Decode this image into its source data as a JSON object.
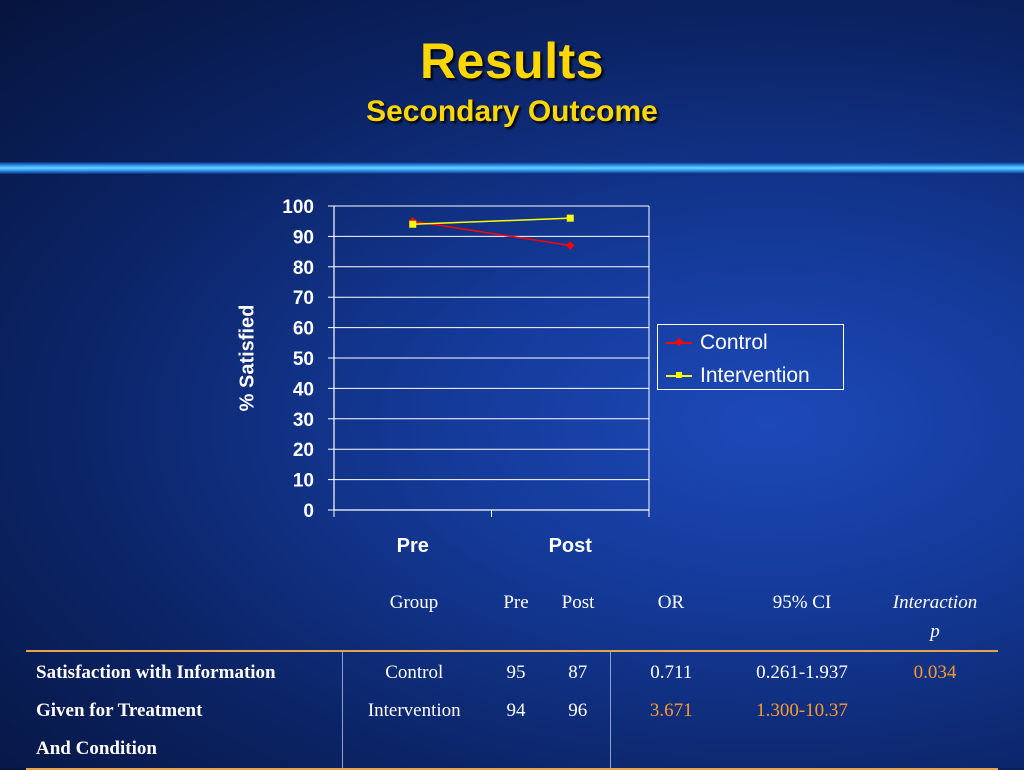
{
  "title": "Results",
  "subtitle": "Secondary Outcome",
  "chart_data": {
    "type": "line",
    "categories": [
      "Pre",
      "Post"
    ],
    "series": [
      {
        "name": "Control",
        "values": [
          95,
          87
        ],
        "color": "#ff0000",
        "marker": "diamond"
      },
      {
        "name": "Intervention",
        "values": [
          94,
          96
        ],
        "color": "#ffff00",
        "marker": "square"
      }
    ],
    "ylabel": "% Satisfied",
    "xlabel": "",
    "ylim": [
      0,
      100
    ],
    "yticks": [
      0,
      10,
      20,
      30,
      40,
      50,
      60,
      70,
      80,
      90,
      100
    ],
    "grid": true,
    "legend": "right"
  },
  "table": {
    "headers": {
      "group": "Group",
      "pre": "Pre",
      "post": "Post",
      "or": "OR",
      "ci": "95% CI",
      "p_line1": "Interaction",
      "p_line2": "p"
    },
    "measure_lines": [
      "Satisfaction with Information",
      "Given for Treatment",
      "And Condition"
    ],
    "rows": [
      {
        "group": "Control",
        "pre": "95",
        "post": "87",
        "or": "0.711",
        "ci": "0.261-1.937",
        "p": "0.034"
      },
      {
        "group": "Intervention",
        "pre": "94",
        "post": "96",
        "or": "3.671",
        "ci": "1.300-10.37",
        "p": ""
      }
    ],
    "highlight_color": "#ff9a2e"
  }
}
